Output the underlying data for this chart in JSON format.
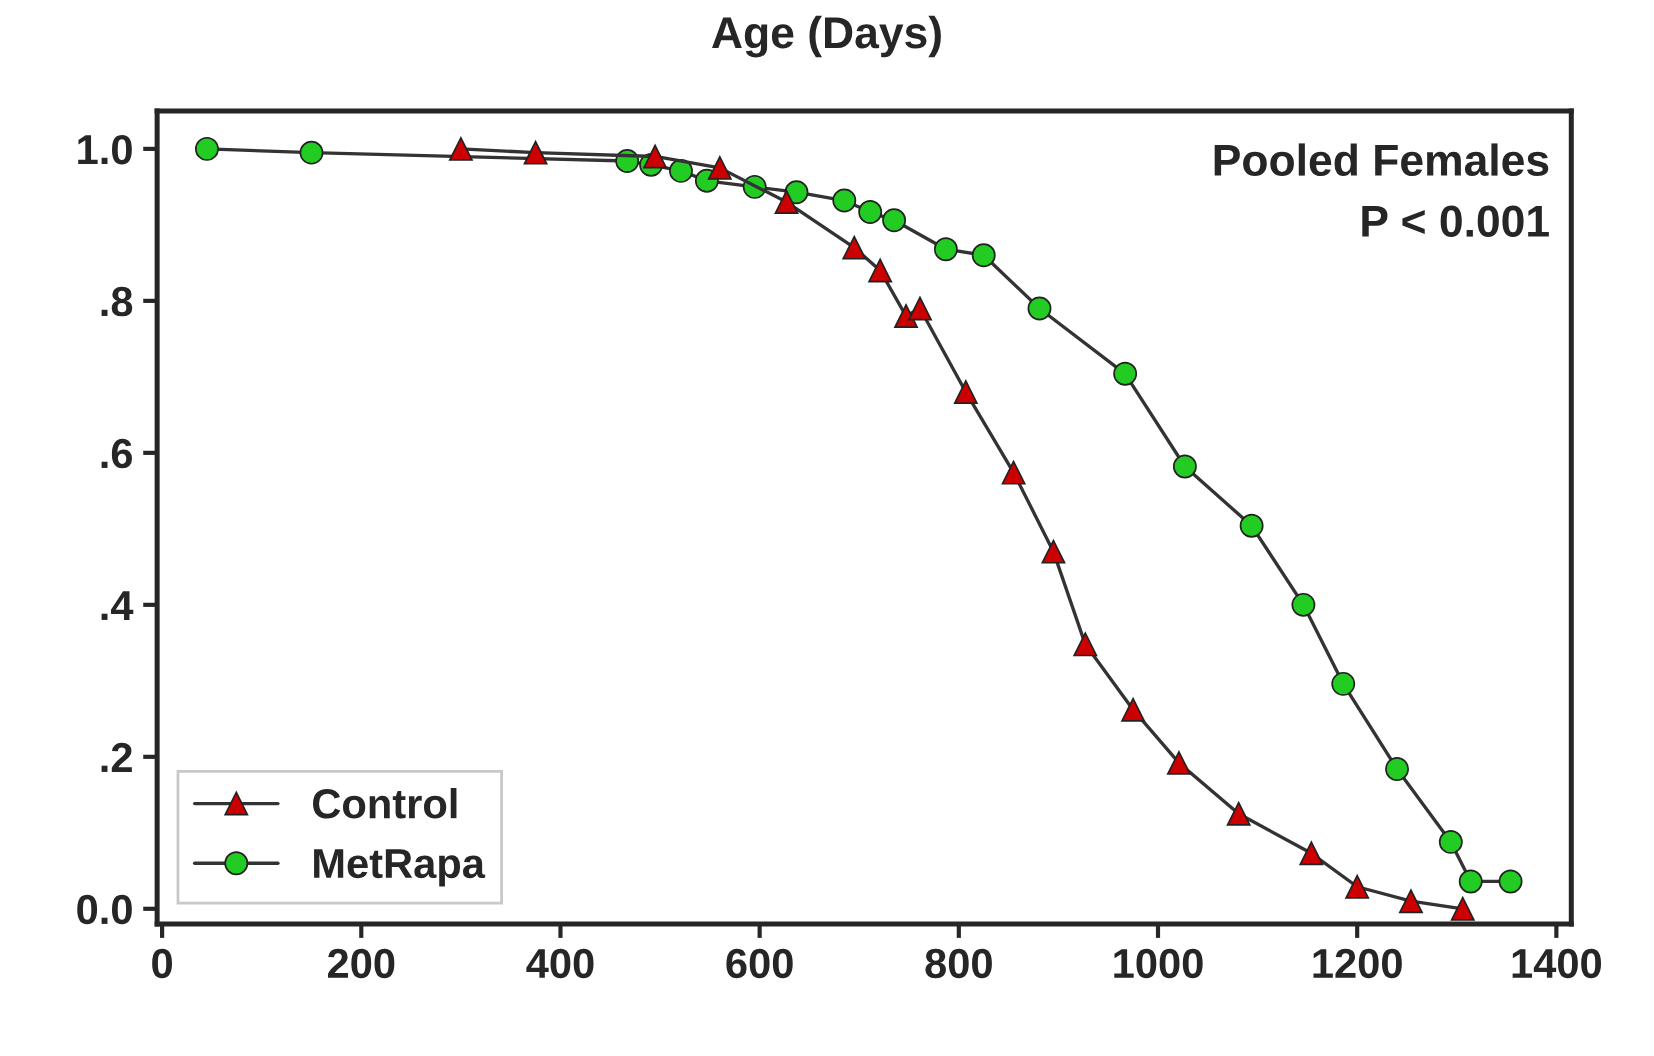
{
  "chart_data": {
    "type": "line",
    "title": "Age (Days)",
    "xlim": [
      -5,
      1415
    ],
    "ylim": [
      -0.02,
      1.05
    ],
    "xticks": [
      0,
      200,
      400,
      600,
      800,
      1000,
      1200,
      1400
    ],
    "yticks": [
      {
        "value": 0,
        "label": "0.0"
      },
      {
        "value": 0.2,
        "label": ".2"
      },
      {
        "value": 0.4,
        "label": ".4"
      },
      {
        "value": 0.6,
        "label": ".6"
      },
      {
        "value": 0.8,
        "label": ".8"
      },
      {
        "value": 1.0,
        "label": "1.0"
      }
    ],
    "annotations": [
      "Pooled Females",
      "P < 0.001"
    ],
    "legend": "bottom left",
    "grid": false,
    "line_style": "solid",
    "series": [
      {
        "name": "Control",
        "color": "#cc0000",
        "marker": "triangle",
        "x": [
          300,
          375,
          495,
          560,
          627,
          695,
          721,
          747,
          761,
          807,
          855,
          895,
          927,
          975,
          1021,
          1081,
          1154,
          1200,
          1254,
          1306
        ],
        "values": [
          1.0,
          0.995,
          0.99,
          0.975,
          0.93,
          0.87,
          0.84,
          0.78,
          0.79,
          0.68,
          0.574,
          0.47,
          0.348,
          0.262,
          0.192,
          0.125,
          0.073,
          0.029,
          0.01,
          0.0
        ]
      },
      {
        "name": "MetRapa",
        "color": "#22cc22",
        "marker": "circle",
        "x": [
          45,
          150,
          467,
          491,
          521,
          547,
          595,
          637,
          685,
          711,
          735,
          787,
          825,
          881,
          967,
          1027,
          1094,
          1146,
          1186,
          1240,
          1294,
          1314,
          1354
        ],
        "values": [
          1.0,
          0.995,
          0.984,
          0.979,
          0.971,
          0.958,
          0.95,
          0.943,
          0.932,
          0.917,
          0.906,
          0.868,
          0.86,
          0.79,
          0.704,
          0.582,
          0.504,
          0.4,
          0.296,
          0.184,
          0.088,
          0.036,
          0.036
        ]
      }
    ]
  }
}
